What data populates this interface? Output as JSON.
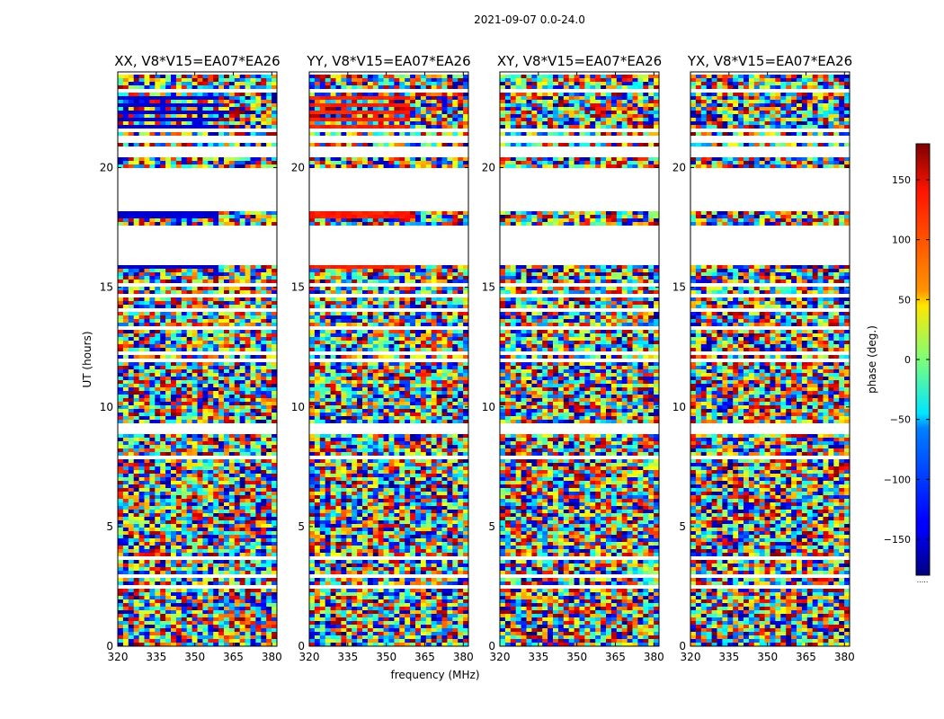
{
  "chart_data": {
    "type": "heatmap",
    "suptitle": "2021-09-07 0.0-24.0",
    "xlabel": "frequency (MHz)",
    "ylabel": "UT (hours)",
    "xlim": [
      320,
      382
    ],
    "ylim": [
      0,
      24
    ],
    "x_ticks": [
      "320",
      "335",
      "350",
      "365",
      "380"
    ],
    "x_tick_values": [
      320,
      335,
      350,
      365,
      380
    ],
    "y_ticks": [
      "0",
      "5",
      "10",
      "15",
      "20"
    ],
    "y_tick_values": [
      0,
      5,
      10,
      15,
      20
    ],
    "panels": [
      {
        "title": "XX, V8*V15=EA07*EA26",
        "polarization": "XX",
        "band_phase": -150
      },
      {
        "title": "YY, V8*V15=EA07*EA26",
        "polarization": "YY",
        "band_phase": 125
      },
      {
        "title": "XY, V8*V15=EA07*EA26",
        "polarization": "XY",
        "band_phase": null
      },
      {
        "title": "YX, V8*V15=EA07*EA26",
        "polarization": "YX",
        "band_phase": null
      }
    ],
    "colorbar": {
      "label": "phase (deg.)",
      "range": [
        -180,
        180
      ],
      "ticks": [
        "150",
        "100",
        "50",
        "0",
        "−50",
        "−100",
        "−150"
      ],
      "tick_values": [
        150,
        100,
        50,
        0,
        -50,
        -100,
        -150
      ],
      "colormap": "jet",
      "extra_label": "....."
    },
    "data_gaps_hours": [
      [
        0.0,
        0.05
      ],
      [
        1.48,
        1.56
      ],
      [
        2.44,
        2.5
      ],
      [
        2.92,
        2.96
      ],
      [
        3.58,
        3.7
      ],
      [
        4.6,
        4.64
      ],
      [
        5.06,
        5.1
      ],
      [
        5.52,
        5.56
      ],
      [
        5.95,
        6.0
      ],
      [
        6.02,
        6.06
      ],
      [
        7.18,
        7.22
      ],
      [
        7.85,
        7.9
      ],
      [
        8.06,
        8.12
      ],
      [
        8.28,
        8.32
      ],
      [
        8.52,
        8.6
      ],
      [
        8.9,
        9.28
      ],
      [
        10.16,
        10.2
      ],
      [
        11.06,
        11.11
      ],
      [
        11.88,
        11.96
      ],
      [
        12.24,
        12.28
      ],
      [
        13.0,
        13.1
      ],
      [
        13.24,
        13.3
      ],
      [
        13.45,
        13.5
      ],
      [
        14.0,
        14.05
      ],
      [
        14.62,
        14.66
      ],
      [
        15.08,
        15.12
      ],
      [
        15.3,
        15.34
      ],
      [
        15.88,
        17.62
      ],
      [
        17.84,
        17.88
      ],
      [
        18.12,
        18.16
      ],
      [
        18.22,
        18.3
      ],
      [
        18.32,
        19.95
      ],
      [
        20.5,
        20.9
      ],
      [
        21.02,
        21.35
      ],
      [
        21.45,
        21.58
      ],
      [
        21.95,
        22.0
      ],
      [
        22.18,
        22.22
      ],
      [
        22.42,
        22.46
      ],
      [
        22.68,
        22.72
      ],
      [
        22.92,
        22.96
      ],
      [
        23.18,
        23.22
      ],
      [
        23.55,
        23.58
      ]
    ]
  }
}
